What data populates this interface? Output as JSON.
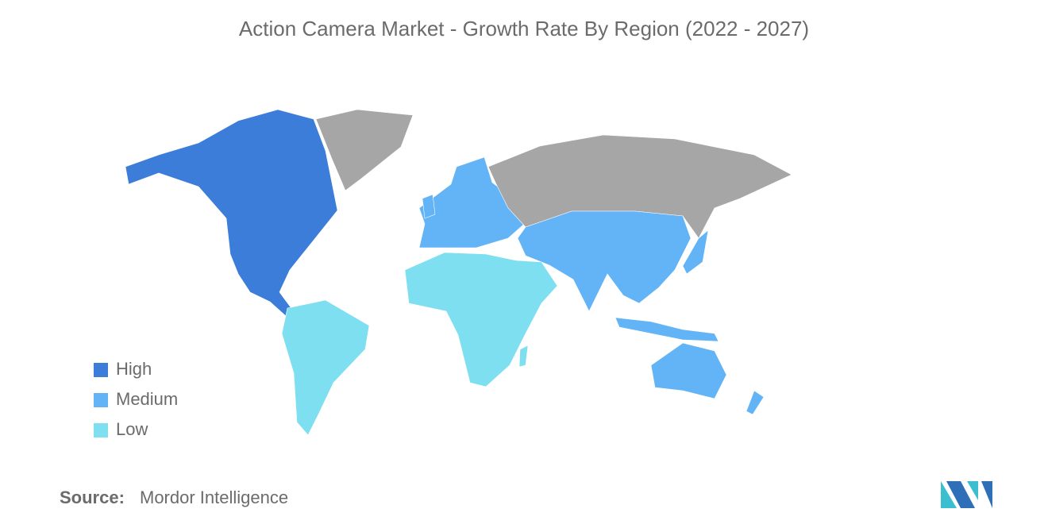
{
  "title": "Action Camera Market - Growth Rate By Region (2022 - 2027)",
  "legend": [
    {
      "label": "High",
      "color": "#3b7dd8"
    },
    {
      "label": "Medium",
      "color": "#62b4f7"
    },
    {
      "label": "Low",
      "color": "#7ddff0"
    }
  ],
  "no_data_color": "#a6a6a6",
  "source": {
    "label": "Source:",
    "text": "Mordor Intelligence"
  }
}
